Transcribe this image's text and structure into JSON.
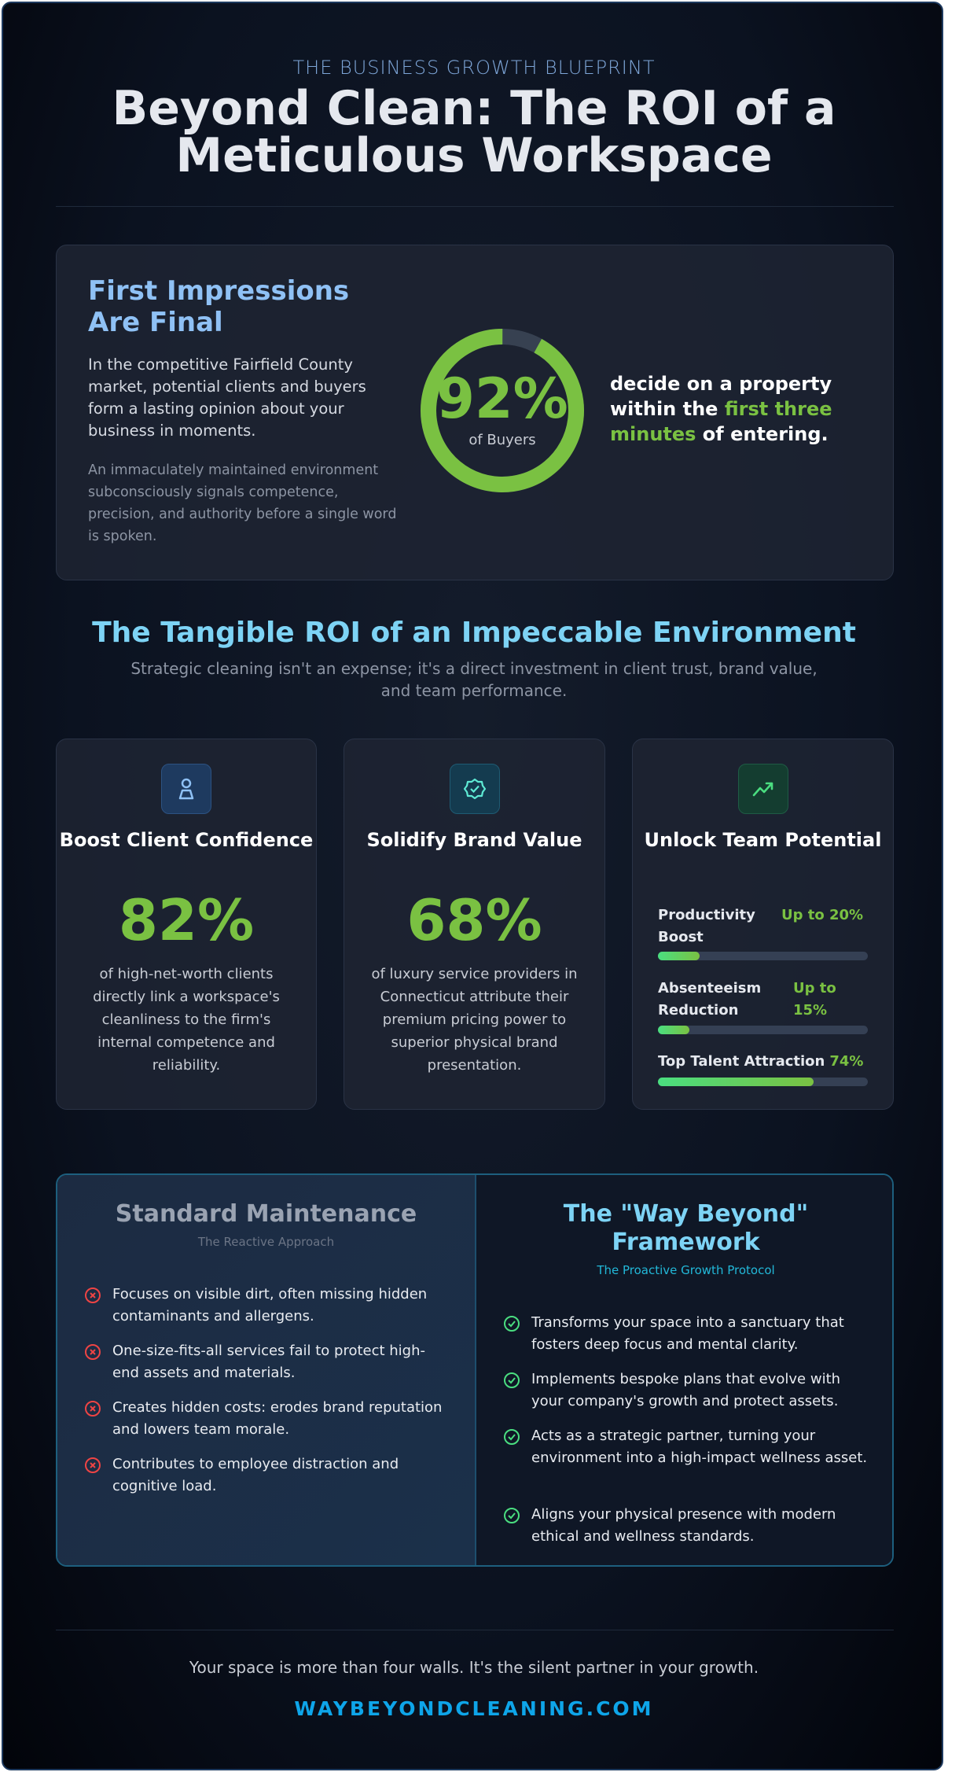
{
  "header": {
    "eyebrow": "THE BUSINESS GROWTH BLUEPRINT",
    "title_line1": "Beyond Clean: The ROI of a",
    "title_line2": "Meticulous Workspace"
  },
  "first_impressions": {
    "heading_line1": "First Impressions",
    "heading_line2": "Are Final",
    "paragraph1": "In the competitive Fairfield County market, potential clients and buyers form a lasting opinion about your business in moments.",
    "paragraph2": "An immaculately maintained environment subconsciously signals competence, precision, and authority before a single word is spoken.",
    "stat_value": "92%",
    "stat_percent": 92,
    "stat_label": "of Buyers",
    "statement_part1": "decide on a property within the ",
    "statement_highlight": "first three minutes",
    "statement_part2": " of entering."
  },
  "roi": {
    "heading": "The Tangible ROI of an Impeccable Environment",
    "subheading": "Strategic cleaning isn't an expense; it's a direct investment in client trust, brand value, and team performance."
  },
  "cards": [
    {
      "icon": "user-icon",
      "title": "Boost Client Confidence",
      "value": "82%",
      "description": "of high-net-worth clients directly link a workspace's cleanliness to the firm's internal competence and reliability."
    },
    {
      "icon": "badge-check-icon",
      "title": "Solidify Brand Value",
      "value": "68%",
      "description": "of luxury service providers in Connecticut attribute their premium pricing power to superior physical brand presentation."
    },
    {
      "icon": "trending-up-icon",
      "title": "Unlock Team Potential",
      "metrics": [
        {
          "label": "Productivity Boost",
          "value": "Up to 20%",
          "percent": 20
        },
        {
          "label": "Absenteeism Reduction",
          "value": "Up to 15%",
          "percent": 15
        },
        {
          "label": "Top Talent Attraction",
          "value": "74%",
          "percent": 74
        }
      ]
    }
  ],
  "comparison": {
    "standard": {
      "title": "Standard Maintenance",
      "subtitle": "The Reactive Approach",
      "items": [
        "Focuses on visible dirt, often missing hidden contaminants and allergens.",
        "One-size-fits-all services fail to protect high-end assets and materials.",
        "Creates hidden costs: erodes brand reputation and lowers team morale.",
        "Contributes to employee distraction and cognitive load."
      ]
    },
    "way_beyond": {
      "title_line1": "The \"Way Beyond\"",
      "title_line2": "Framework",
      "subtitle": "The Proactive Growth Protocol",
      "items": [
        "Transforms your space into a sanctuary that fosters deep focus and mental clarity.",
        "Implements bespoke plans that evolve with your company's growth and protect assets.",
        "Acts as a strategic partner, turning your environment into a high-impact wellness asset.",
        "Aligns your physical presence with modern ethical and wellness standards."
      ]
    }
  },
  "footer": {
    "tagline": "Your space is more than four walls. It's the silent partner in your growth.",
    "url": "WAYBEYONDCLEANING.COM"
  },
  "colors": {
    "accent_green": "#7ac142",
    "accent_blue": "#7dd3f5",
    "url_blue": "#0ea5e9",
    "negative_red": "#ef4444",
    "positive_green": "#4ade80"
  }
}
